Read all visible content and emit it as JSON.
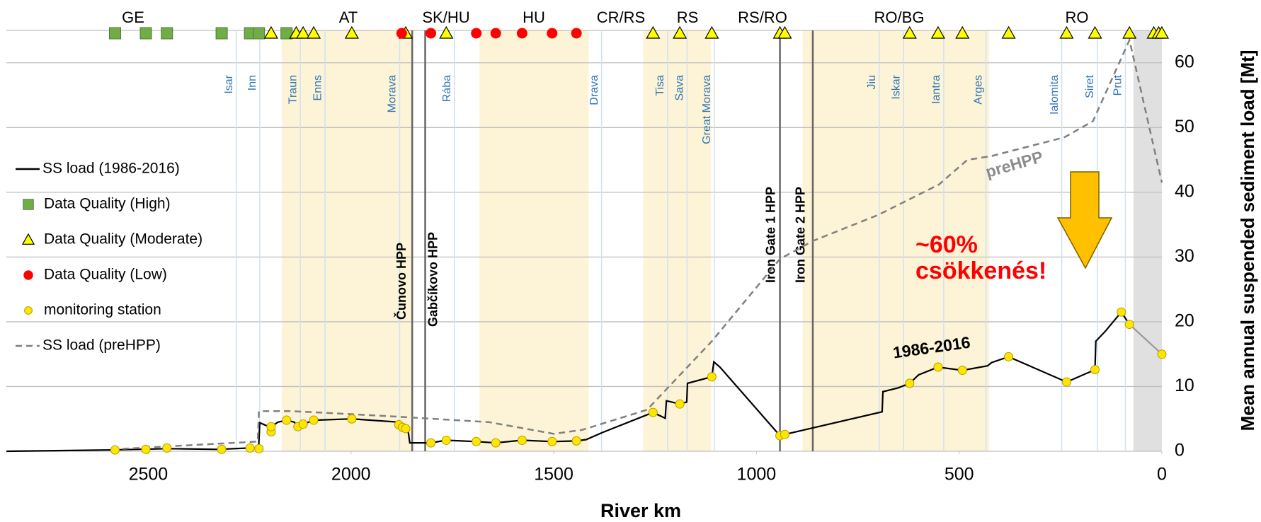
{
  "chart_data": {
    "type": "line",
    "x_label": "River km",
    "y_label": "Mean annual suspended sediment load [Mt]",
    "xlim": [
      2850,
      0
    ],
    "ylim": [
      0,
      65
    ],
    "xticks": [
      2500,
      2000,
      1500,
      1000,
      500,
      0
    ],
    "yticks": [
      0,
      10,
      20,
      30,
      40,
      50,
      60
    ],
    "grid": true,
    "series": [
      {
        "name": "SS load (1986-2016)",
        "type": "line",
        "color": "#000000",
        "x": [
          2850,
          2600,
          2450,
          2330,
          2250,
          2228,
          2225,
          2210,
          2197,
          2180,
          2159,
          2140,
          2131,
          2118,
          2092,
          1998,
          1882,
          1873,
          1860,
          1855,
          1803,
          1765,
          1691,
          1643,
          1578,
          1504,
          1444,
          1420,
          1380,
          1255,
          1225,
          1222,
          1189,
          1172,
          1170,
          1110,
          1105,
          1090,
          942,
          930,
          690,
          688,
          650,
          622,
          600,
          552,
          492,
          430,
          420,
          378,
          235,
          165,
          163,
          140,
          100,
          80
        ],
        "values": [
          0,
          0.2,
          0.4,
          0.3,
          0.5,
          0.5,
          4.4,
          4.0,
          3.8,
          4.5,
          4.8,
          4.5,
          3.8,
          4.2,
          4.8,
          5.0,
          4.5,
          3.7,
          3.5,
          1.3,
          1.3,
          1.7,
          1.5,
          1.3,
          1.7,
          1.5,
          1.6,
          1.8,
          2.9,
          6.0,
          5.1,
          7.8,
          7.3,
          7.6,
          10.5,
          11.5,
          13.8,
          13.0,
          2.4,
          2.6,
          6.1,
          9.2,
          9.8,
          10.5,
          11.8,
          13.0,
          12.5,
          13.2,
          13.7,
          14.6,
          10.7,
          12.6,
          17.0,
          18.5,
          21.5,
          19.6
        ]
      },
      {
        "name": "Data Quality (High)",
        "type": "scatter",
        "marker": "square",
        "color": "#70ad47",
        "x": [
          2582,
          2506,
          2454,
          2319,
          2249,
          2227,
          2159
        ]
      },
      {
        "name": "Data Quality (Moderate)",
        "type": "scatter",
        "marker": "triangle",
        "color": "#ffff00",
        "x": [
          2197,
          2135,
          2118,
          2092,
          1998,
          1865,
          1765,
          1255,
          1189,
          1110,
          942,
          930,
          622,
          552,
          492,
          378,
          235,
          165,
          80,
          20,
          8,
          0
        ]
      },
      {
        "name": "Data Quality (Low)",
        "type": "scatter",
        "marker": "circle",
        "color": "#ff0000",
        "x": [
          1875,
          1803,
          1691,
          1643,
          1578,
          1504,
          1444
        ]
      },
      {
        "name": "monitoring station",
        "type": "scatter",
        "marker": "circle-small",
        "color": "#ffe600",
        "x": [
          2582,
          2506,
          2454,
          2319,
          2249,
          2227,
          2197,
          2197,
          2159,
          2131,
          2118,
          2092,
          1998,
          1882,
          1873,
          1865,
          1803,
          1765,
          1691,
          1643,
          1578,
          1504,
          1444,
          1255,
          1189,
          1110,
          942,
          930,
          622,
          552,
          492,
          378,
          235,
          165,
          100,
          80,
          0
        ],
        "values": [
          0.2,
          0.3,
          0.5,
          0.3,
          0.5,
          0.4,
          3.0,
          3.8,
          4.8,
          3.8,
          4.2,
          4.8,
          5.0,
          4.1,
          3.7,
          3.5,
          1.3,
          1.7,
          1.5,
          1.3,
          1.7,
          1.5,
          1.6,
          6.0,
          7.3,
          11.5,
          2.4,
          2.6,
          10.5,
          13.0,
          12.5,
          14.6,
          10.7,
          12.6,
          21.5,
          19.6,
          15.0
        ]
      },
      {
        "name": "SS load (preHPP)",
        "type": "line",
        "dash": true,
        "color": "#808080",
        "x": [
          2590,
          2230,
          2227,
          2150,
          2050,
          1900,
          1660,
          1500,
          1430,
          1270,
          1110,
          942,
          860,
          700,
          550,
          480,
          420,
          240,
          170,
          80,
          0
        ],
        "values": [
          0.3,
          1.5,
          6.2,
          6.2,
          5.9,
          5.4,
          4.5,
          2.7,
          3.3,
          6.4,
          17.0,
          29.7,
          32.5,
          36.5,
          41.2,
          45.0,
          45.6,
          48.5,
          51.0,
          63.5,
          41.5
        ]
      },
      {
        "type": "line",
        "color": "#999999",
        "x": [
          80,
          0
        ],
        "values": [
          19.6,
          15.0
        ]
      }
    ],
    "bands": [
      {
        "from": 2171,
        "to": 1849,
        "color": "#fdf3d6"
      },
      {
        "from": 1683,
        "to": 1414,
        "color": "#fdf3d6"
      },
      {
        "from": 1279,
        "to": 1112,
        "color": "#fdf3d6"
      },
      {
        "from": 886,
        "to": 426,
        "color": "#fdf3d6"
      },
      {
        "from": 70,
        "to": 0,
        "color": "#e0e0e0"
      }
    ],
    "countries": [
      "GE",
      "AT",
      "SK/HU",
      "HU",
      "CR/RS",
      "RS",
      "RS/RO",
      "RO/BG",
      "RO"
    ],
    "tributaries": [
      {
        "label": "Isar",
        "km": 2283
      },
      {
        "label": "Inn",
        "km": 2225
      },
      {
        "label": "Traun",
        "km": 2125
      },
      {
        "label": "Enns",
        "km": 2064
      },
      {
        "label": "Morava",
        "km": 1880
      },
      {
        "label": "Rába",
        "km": 1745
      },
      {
        "label": "Drava",
        "km": 1382
      },
      {
        "label": "Tisa",
        "km": 1219
      },
      {
        "label": "Sava",
        "km": 1171
      },
      {
        "label": "Great Morava",
        "km": 1104
      },
      {
        "label": "Jiu",
        "km": 697
      },
      {
        "label": "Iskar",
        "km": 637
      },
      {
        "label": "Iantra",
        "km": 538
      },
      {
        "label": "Arges",
        "km": 434
      },
      {
        "label": "Ialomita",
        "km": 247
      },
      {
        "label": "Siret",
        "km": 159
      },
      {
        "label": "Prut",
        "km": 90
      }
    ],
    "hpp": [
      {
        "label": "Čunovo HPP",
        "km": 1849
      },
      {
        "label": "Gabčíkovo HPP",
        "km": 1817
      },
      {
        "label": "Iron Gate 1 HPP",
        "km": 942
      },
      {
        "label": "Iron Gate 2 HPP",
        "km": 861
      }
    ],
    "annotations": [
      "~60%",
      "csökkenés!",
      "1986-2016",
      "preHPP"
    ]
  }
}
